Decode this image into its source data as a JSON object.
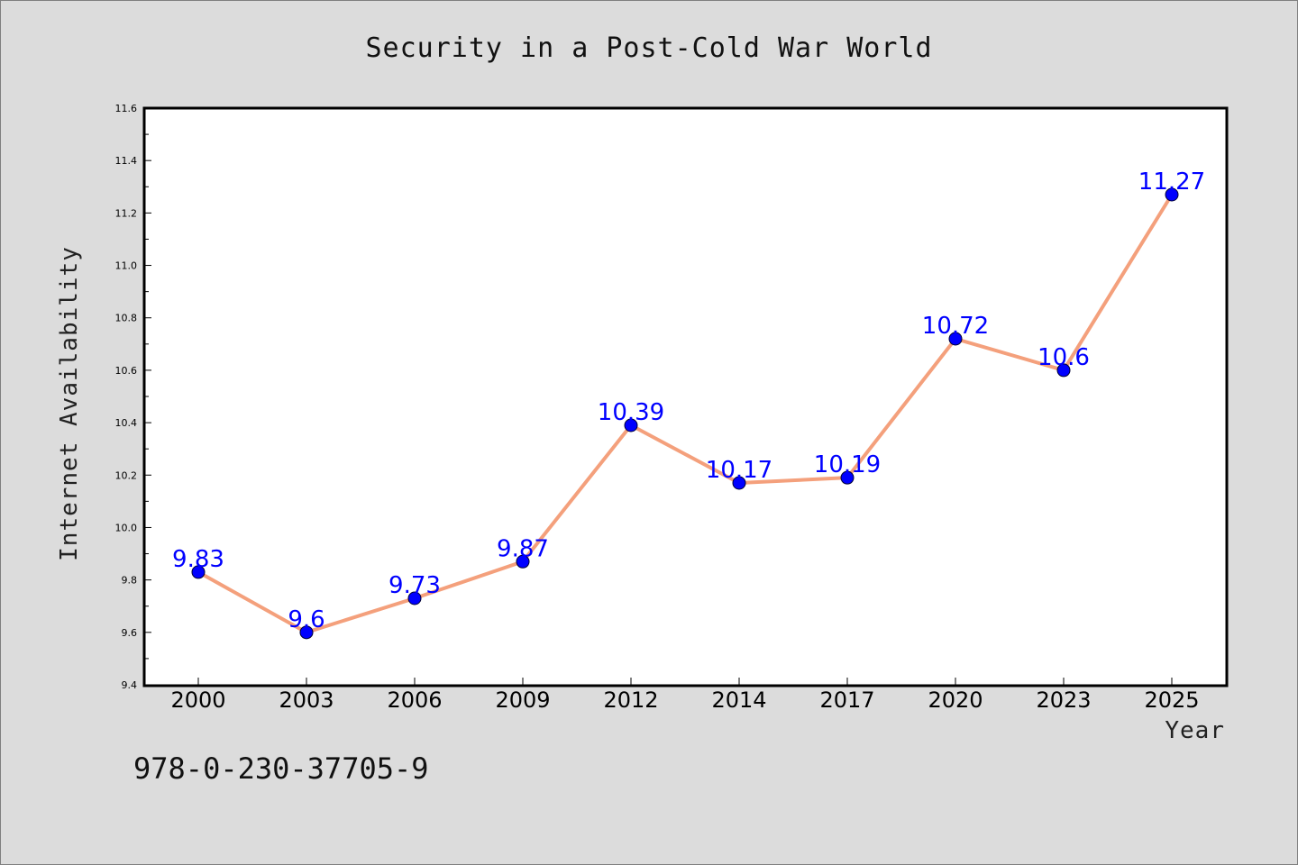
{
  "chart_data": {
    "type": "line",
    "title": "Security in a Post-Cold War World",
    "xlabel": "Year",
    "ylabel": "Internet Availability",
    "categories": [
      "2000",
      "2003",
      "2006",
      "2009",
      "2012",
      "2014",
      "2017",
      "2020",
      "2023",
      "2025"
    ],
    "series": [
      {
        "values": [
          9.83,
          9.6,
          9.73,
          9.87,
          10.39,
          10.17,
          10.19,
          10.72,
          10.6,
          11.27
        ],
        "labels": [
          "9.83",
          "9.6",
          "9.73",
          "9.87",
          "10.39",
          "10.17",
          "10.19",
          "10.72",
          "10.6",
          "11.27"
        ],
        "line_color": "#f4a07c",
        "marker_color": "#0000ff"
      }
    ],
    "ylim": [
      9.4,
      11.6
    ],
    "yticks": [
      "9.4",
      "9.6",
      "9.8",
      "10.0",
      "10.2",
      "10.4",
      "10.6",
      "10.8",
      "11.0",
      "11.2",
      "11.4",
      "11.6"
    ],
    "grid": false,
    "legend": "none"
  },
  "footer": {
    "code": "978-0-230-37705-9"
  }
}
